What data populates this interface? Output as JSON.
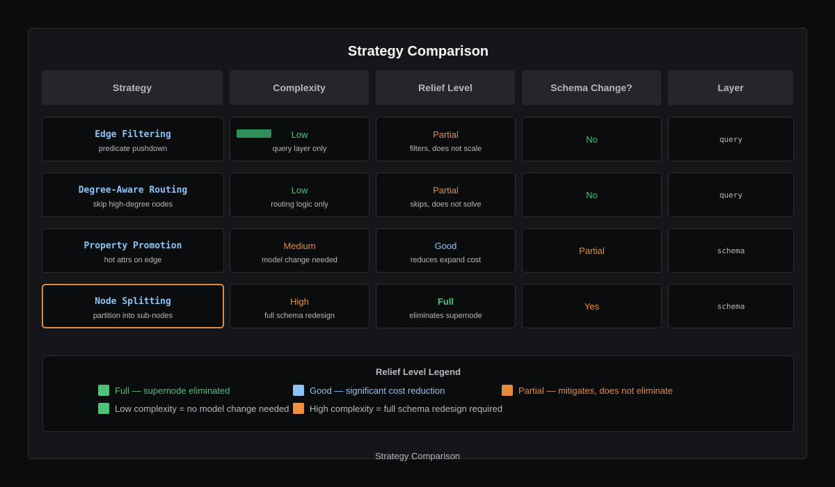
{
  "title": "Strategy Comparison",
  "footer": "Strategy Comparison",
  "colors": {
    "green": "#4cc27a",
    "blue": "#8cc4f5",
    "orange": "#e38a3e",
    "gray": "#b4b8bf",
    "selected_border": "#e38a3e"
  },
  "headers": [
    "Strategy",
    "Complexity",
    "Relief Level",
    "Schema Change?",
    "Layer"
  ],
  "rows": [
    {
      "strategy": "Edge Filtering",
      "strategy_note": "predicate pushdown",
      "complexity": "Low",
      "complexity_note": "query layer only",
      "relief": "Partial",
      "relief_note": "filters, does not scale",
      "schema_change": "No",
      "layer": "query"
    },
    {
      "strategy": "Degree-Aware Routing",
      "strategy_note": "skip high-degree nodes",
      "complexity": "Low",
      "complexity_note": "routing logic only",
      "relief": "Partial",
      "relief_note": "skips, does not solve",
      "schema_change": "No",
      "layer": "query"
    },
    {
      "strategy": "Property Promotion",
      "strategy_note": "hot attrs on edge",
      "complexity": "Medium",
      "complexity_note": "model change needed",
      "relief": "Good",
      "relief_note": "reduces expand cost",
      "schema_change": "Partial",
      "layer": "schema"
    },
    {
      "strategy": "Node Splitting",
      "strategy_note": "partition into sub-nodes",
      "complexity": "High",
      "complexity_note": "full schema redesign",
      "relief": "Full",
      "relief_note": "eliminates supernode",
      "schema_change": "Yes",
      "layer": "schema"
    }
  ],
  "legend": {
    "title": "Relief Level Legend",
    "items": [
      "Full — supernode eliminated",
      "Good — significant cost reduction",
      "Partial — mitigates, does not eliminate",
      "Low complexity = no model change needed",
      "High complexity = full schema redesign required"
    ]
  }
}
